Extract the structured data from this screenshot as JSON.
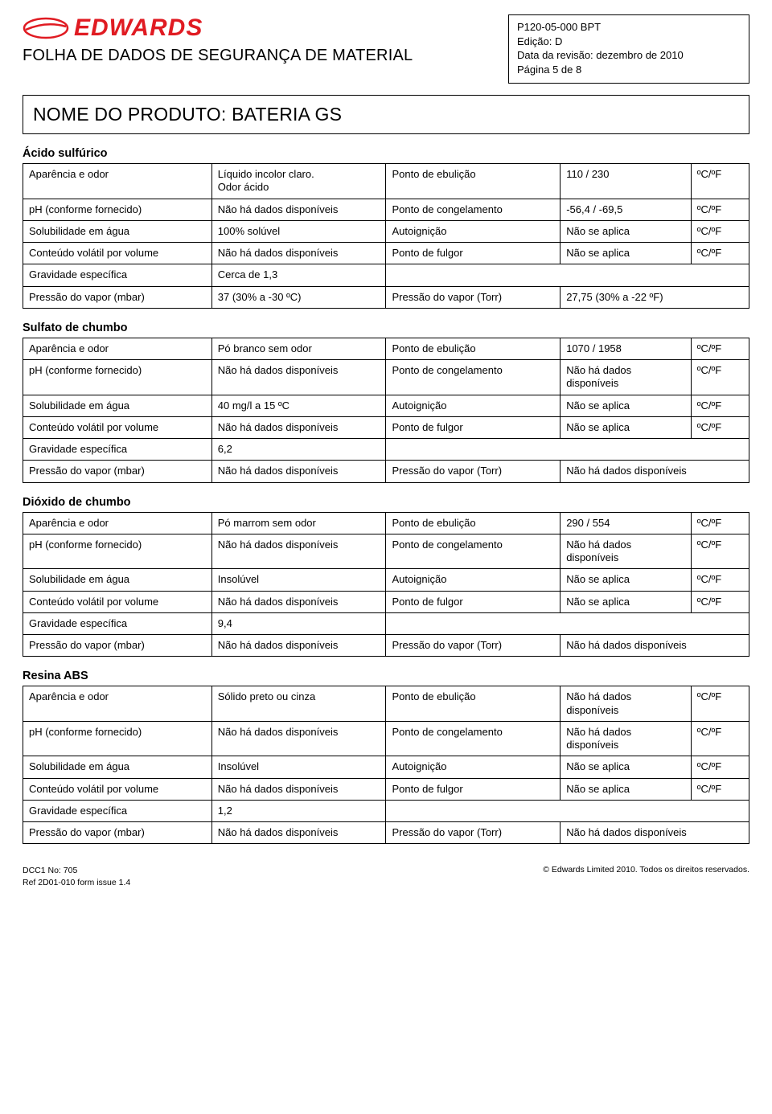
{
  "logo_text": "EDWARDS",
  "sheet_title": "FOLHA DE DADOS DE SEGURANÇA DE MATERIAL",
  "doc_info": {
    "code": "P120-05-000 BPT",
    "edition_label": "Edição: D",
    "revision_label": "Data da revisão: dezembro de 2010",
    "page_label": "Página 5 de 8"
  },
  "product_name_prefix": "NOME DO PRODUTO",
  "product_name": "BATERIA GS",
  "sections": [
    {
      "title": "Ácido sulfúrico",
      "rows": [
        [
          "Aparência e odor",
          "Líquido incolor claro.\nOdor ácido",
          "Ponto de ebulição",
          "110 / 230",
          "ºC/ºF"
        ],
        [
          "pH (conforme fornecido)",
          "Não há dados disponíveis",
          "Ponto de congelamento",
          "-56,4 / -69,5",
          "ºC/ºF"
        ],
        [
          "Solubilidade em água",
          "100% solúvel",
          "Autoignição",
          "Não se aplica",
          "ºC/ºF"
        ],
        [
          "Conteúdo volátil por volume",
          "Não há dados disponíveis",
          "Ponto de fulgor",
          "Não se aplica",
          "ºC/ºF"
        ],
        [
          "Gravidade específica",
          "Cerca de 1,3",
          "",
          "",
          ""
        ],
        [
          "Pressão do vapor (mbar)",
          "37 (30% a -30 ºC)",
          "Pressão do vapor (Torr)",
          "27,75 (30% a -22 ºF)",
          ""
        ]
      ]
    },
    {
      "title": "Sulfato de chumbo",
      "rows": [
        [
          "Aparência e odor",
          "Pó branco sem odor",
          "Ponto de ebulição",
          "1070 / 1958",
          "ºC/ºF"
        ],
        [
          "pH (conforme fornecido)",
          "Não há dados disponíveis",
          "Ponto de congelamento",
          "Não há dados disponíveis",
          "ºC/ºF"
        ],
        [
          "Solubilidade em água",
          "40 mg/l a 15 ºC",
          "Autoignição",
          "Não se aplica",
          "ºC/ºF"
        ],
        [
          "Conteúdo volátil por volume",
          "Não há dados disponíveis",
          "Ponto de fulgor",
          "Não se aplica",
          "ºC/ºF"
        ],
        [
          "Gravidade específica",
          "6,2",
          "",
          "",
          ""
        ],
        [
          "Pressão do vapor (mbar)",
          "Não há dados disponíveis",
          "Pressão do vapor (Torr)",
          "Não há dados disponíveis",
          ""
        ]
      ]
    },
    {
      "title": "Dióxido de chumbo",
      "rows": [
        [
          "Aparência e odor",
          "Pó marrom sem odor",
          "Ponto de ebulição",
          "290 / 554",
          "ºC/ºF"
        ],
        [
          "pH (conforme fornecido)",
          "Não há dados disponíveis",
          "Ponto de congelamento",
          "Não há dados disponíveis",
          "ºC/ºF"
        ],
        [
          "Solubilidade em água",
          "Insolúvel",
          "Autoignição",
          "Não se aplica",
          "ºC/ºF"
        ],
        [
          "Conteúdo volátil por volume",
          "Não há dados disponíveis",
          "Ponto de fulgor",
          "Não se aplica",
          "ºC/ºF"
        ],
        [
          "Gravidade específica",
          "9,4",
          "",
          "",
          ""
        ],
        [
          "Pressão do vapor (mbar)",
          "Não há dados disponíveis",
          "Pressão do vapor (Torr)",
          "Não há dados disponíveis",
          ""
        ]
      ]
    },
    {
      "title": "Resina ABS",
      "rows": [
        [
          "Aparência e odor",
          "Sólido preto ou cinza",
          "Ponto de ebulição",
          "Não há dados disponíveis",
          "ºC/ºF"
        ],
        [
          "pH (conforme fornecido)",
          "Não há dados disponíveis",
          "Ponto de congelamento",
          "Não há dados disponíveis",
          "ºC/ºF"
        ],
        [
          "Solubilidade em água",
          "Insolúvel",
          "Autoignição",
          "Não se aplica",
          "ºC/ºF"
        ],
        [
          "Conteúdo volátil por volume",
          "Não há dados disponíveis",
          "Ponto de fulgor",
          "Não se aplica",
          "ºC/ºF"
        ],
        [
          "Gravidade específica",
          "1,2",
          "",
          "",
          ""
        ],
        [
          "Pressão do vapor (mbar)",
          "Não há dados disponíveis",
          "Pressão do vapor (Torr)",
          "Não há dados disponíveis",
          ""
        ]
      ]
    }
  ],
  "footer": {
    "dcc": "DCC1 No: 705",
    "ref": "Ref 2D01-010 form issue 1.4",
    "copyright": "© Edwards Limited 2010. Todos os direitos reservados."
  },
  "colors": {
    "accent": "#e01b22",
    "border": "#000000",
    "text": "#000000",
    "bg": "#ffffff"
  }
}
